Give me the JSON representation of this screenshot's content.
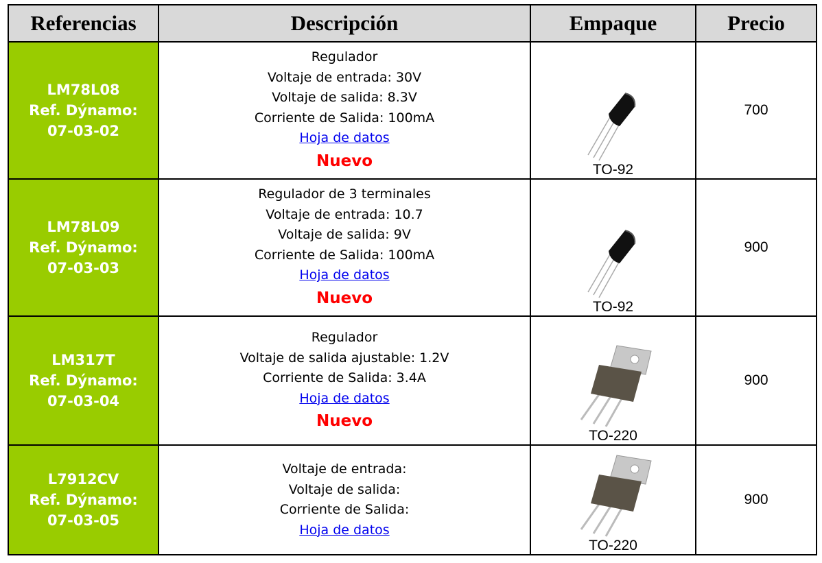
{
  "header": {
    "columns": [
      "Referencias",
      "Descripción",
      "Empaque",
      "Precio"
    ]
  },
  "table": {
    "rows": [
      {
        "reference": [
          "LM78L08",
          "Ref. Dýnamo:",
          "07-03-02"
        ],
        "description": [
          "Regulador",
          "Voltaje de entrada: 30V",
          "Voltaje de salida: 8.3V",
          "Corriente de Salida: 100mA"
        ],
        "link": "Hoja de datos",
        "badge": "Nuevo",
        "package": "TO-92",
        "price": 700
      },
      {
        "reference": [
          "LM78L09",
          "Ref. Dýnamo:",
          "07-03-03"
        ],
        "description": [
          "Regulador de 3 terminales",
          "Voltaje de entrada: 10.7",
          "Voltaje de salida: 9V",
          "Corriente de Salida: 100mA"
        ],
        "link": "Hoja de datos",
        "badge": "Nuevo",
        "package": "TO-92",
        "price": 900
      },
      {
        "reference": [
          "LM317T",
          "Ref. Dýnamo:",
          "07-03-04"
        ],
        "description": [
          "Regulador",
          "Voltaje de salida ajustable: 1.2V",
          "Corriente de Salida: 3.4A"
        ],
        "link": "Hoja de datos",
        "badge": "Nuevo",
        "package": "TO-220",
        "price": 900
      },
      {
        "reference": [
          "L7912CV",
          "Ref. Dýnamo:",
          "07-03-05"
        ],
        "description": [
          "Voltaje de entrada:",
          "Voltaje de salida:",
          "Corriente de Salida:"
        ],
        "link": "Hoja de datos",
        "package": "TO-220",
        "price": 900
      }
    ]
  }
}
